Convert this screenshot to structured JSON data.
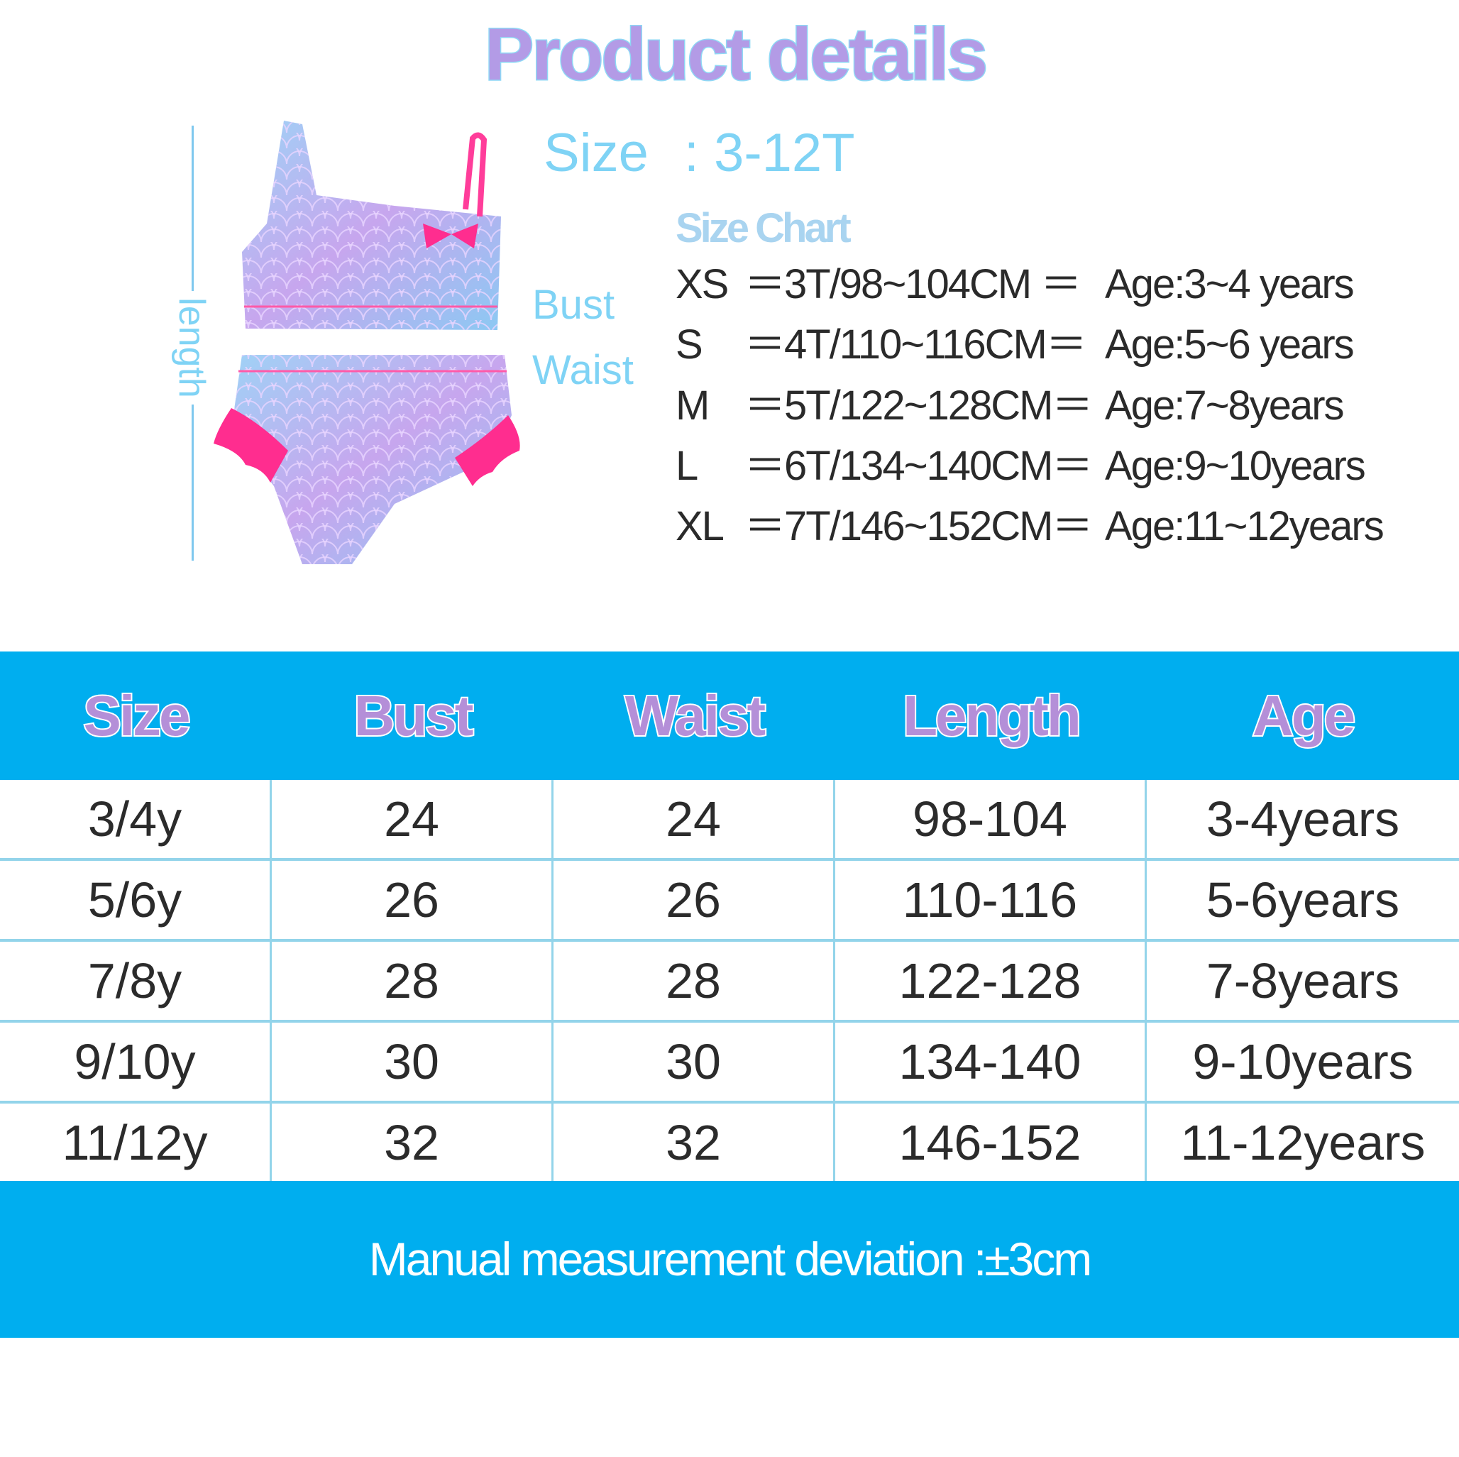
{
  "title": "Product details",
  "size_line": {
    "label": "Size",
    "value": ": 3-12T"
  },
  "size_chart": {
    "title": "Size Chart",
    "rows": [
      {
        "size": "XS",
        "measure": "＝3T/98~104CM ＝",
        "age": "Age:3~4 years"
      },
      {
        "size": "S",
        "measure": "＝4T/110~116CM＝",
        "age": "Age:5~6 years"
      },
      {
        "size": "M",
        "measure": "＝5T/122~128CM＝",
        "age": "Age:7~8years"
      },
      {
        "size": "L",
        "measure": "＝6T/134~140CM＝",
        "age": "Age:9~10years"
      },
      {
        "size": "XL",
        "measure": "＝7T/146~152CM＝",
        "age": "Age:11~12years"
      }
    ]
  },
  "diagram": {
    "length_label": "length",
    "bust_label": "Bust",
    "waist_label": "Waist"
  },
  "table": {
    "headers": [
      "Size",
      "Bust",
      "Waist",
      "Length",
      "Age"
    ],
    "rows": [
      [
        "3/4y",
        "24",
        "24",
        "98-104",
        "3-4years"
      ],
      [
        "5/6y",
        "26",
        "26",
        "110-116",
        "5-6years"
      ],
      [
        "7/8y",
        "28",
        "28",
        "122-128",
        "7-8years"
      ],
      [
        "9/10y",
        "30",
        "30",
        "134-140",
        "9-10years"
      ],
      [
        "11/12y",
        "32",
        "32",
        "146-152",
        "11-12years"
      ]
    ]
  },
  "footer": "Manual measurement deviation  :±3cm",
  "colors": {
    "band": "#00aeef",
    "header_text": "#b48fd8",
    "accent_light_blue": "#7fd3f5",
    "grid": "#93d4ea",
    "ruffle_pink": "#ff2d8f"
  }
}
